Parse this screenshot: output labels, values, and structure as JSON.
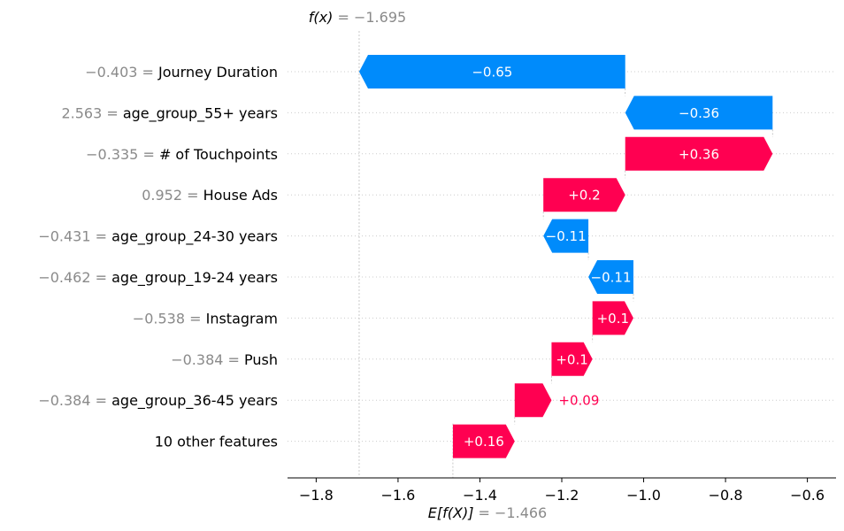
{
  "chart_data": {
    "type": "waterfall",
    "title": "",
    "fx_label": "f(x)",
    "fx_value": "−1.695",
    "efx_label": "E[f(X)]",
    "efx_value": "−1.466",
    "fx": -1.695,
    "base_value": -1.466,
    "xlim": [
      -1.87,
      -0.53
    ],
    "xticks": [
      -1.8,
      -1.6,
      -1.4,
      -1.2,
      -1.0,
      -0.8,
      -0.6
    ],
    "xtick_labels": [
      "−1.8",
      "−1.6",
      "−1.4",
      "−1.2",
      "−1.0",
      "−0.8",
      "−0.6"
    ],
    "colors": {
      "positive": "#ff0051",
      "negative": "#008bfb",
      "value_text": "#8a8a8a",
      "grid": "#cccccc"
    },
    "features": [
      {
        "value": "−0.403",
        "name": "Journey Duration",
        "start": -1.045,
        "end": -1.695,
        "label": "−0.65",
        "label_pos": "inside"
      },
      {
        "value": "2.563",
        "name": "age_group_55+ years",
        "start": -0.685,
        "end": -1.045,
        "label": "−0.36",
        "label_pos": "inside"
      },
      {
        "value": "−0.335",
        "name": "# of Touchpoints",
        "start": -1.045,
        "end": -0.685,
        "label": "+0.36",
        "label_pos": "inside"
      },
      {
        "value": "0.952",
        "name": "House Ads",
        "start": -1.245,
        "end": -1.045,
        "label": "+0.2",
        "label_pos": "inside"
      },
      {
        "value": "−0.431",
        "name": "age_group_24-30 years",
        "start": -1.135,
        "end": -1.245,
        "label": "−0.11",
        "label_pos": "inside"
      },
      {
        "value": "−0.462",
        "name": "age_group_19-24 years",
        "start": -1.025,
        "end": -1.135,
        "label": "−0.11",
        "label_pos": "inside"
      },
      {
        "value": "−0.538",
        "name": "Instagram",
        "start": -1.125,
        "end": -1.025,
        "label": "+0.1",
        "label_pos": "inside"
      },
      {
        "value": "−0.384",
        "name": "Push",
        "start": -1.225,
        "end": -1.125,
        "label": "+0.1",
        "label_pos": "inside"
      },
      {
        "value": "−0.384",
        "name": "age_group_36-45 years",
        "start": -1.315,
        "end": -1.225,
        "label": "+0.09",
        "label_pos": "outside"
      },
      {
        "value": "",
        "name": "10 other features",
        "start": -1.466,
        "end": -1.315,
        "label": "+0.16",
        "label_pos": "inside"
      }
    ]
  }
}
